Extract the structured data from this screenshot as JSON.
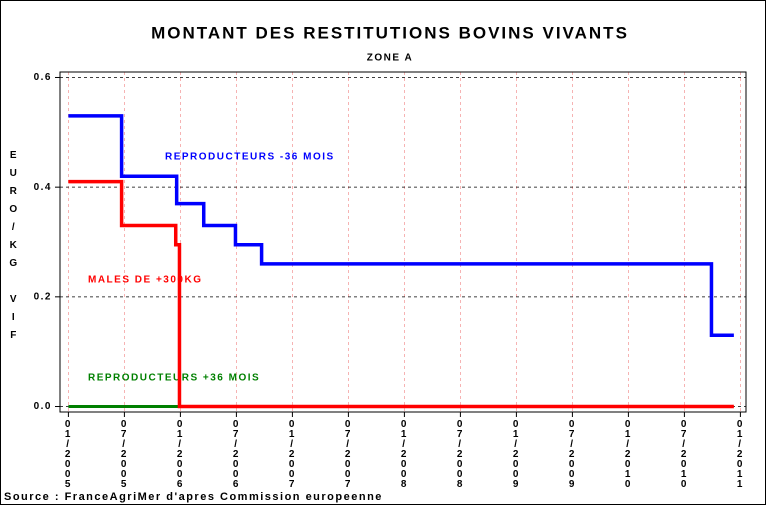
{
  "chart_data": {
    "type": "line",
    "title": "MONTANT DES RESTITUTIONS BOVINS VIVANTS",
    "subtitle": "ZONE A",
    "y_label": "EURO/KG VIF",
    "source": "Source : FranceAgriMer d'apres Commission europeenne",
    "xlim": [
      -0.9,
      72.6
    ],
    "xticks": [
      {
        "value": 0,
        "label": "01/2005"
      },
      {
        "value": 6,
        "label": "07/2005"
      },
      {
        "value": 12,
        "label": "01/2006"
      },
      {
        "value": 18,
        "label": "07/2006"
      },
      {
        "value": 24,
        "label": "01/2007"
      },
      {
        "value": 30,
        "label": "07/2007"
      },
      {
        "value": 36,
        "label": "01/2008"
      },
      {
        "value": 42,
        "label": "07/2008"
      },
      {
        "value": 48,
        "label": "01/2009"
      },
      {
        "value": 54,
        "label": "07/2009"
      },
      {
        "value": 60,
        "label": "01/2010"
      },
      {
        "value": 66,
        "label": "07/2010"
      },
      {
        "value": 72,
        "label": "01/2011"
      }
    ],
    "ylim": [
      -0.01,
      0.61
    ],
    "yticks": [
      {
        "value": 0,
        "label": "0.0"
      },
      0.2,
      0.4,
      0.6
    ],
    "grid": true,
    "series": [
      {
        "name": "REPRODUCTEURS -36 MOIS",
        "color": "#0000ff",
        "x": [
          0,
          5.7,
          5.7,
          11.6,
          11.6,
          14.5,
          14.5,
          17.9,
          17.9,
          20.7,
          20.7,
          68.9,
          68.9,
          71.3
        ],
        "values": [
          0.53,
          0.53,
          0.42,
          0.42,
          0.37,
          0.37,
          0.33,
          0.33,
          0.295,
          0.295,
          0.26,
          0.26,
          0.13,
          0.13
        ]
      },
      {
        "name": "MALES DE +300KG",
        "color": "#ff0000",
        "x": [
          0,
          5.7,
          5.7,
          11.5,
          11.5,
          11.9,
          11.9,
          71.3
        ],
        "values": [
          0.41,
          0.41,
          0.33,
          0.33,
          0.295,
          0.295,
          0,
          0
        ]
      },
      {
        "name": "REPRODUCTEURS +36 MOIS",
        "color": "#008000",
        "x": [
          0,
          11.9
        ],
        "values": [
          0,
          0
        ]
      }
    ]
  }
}
